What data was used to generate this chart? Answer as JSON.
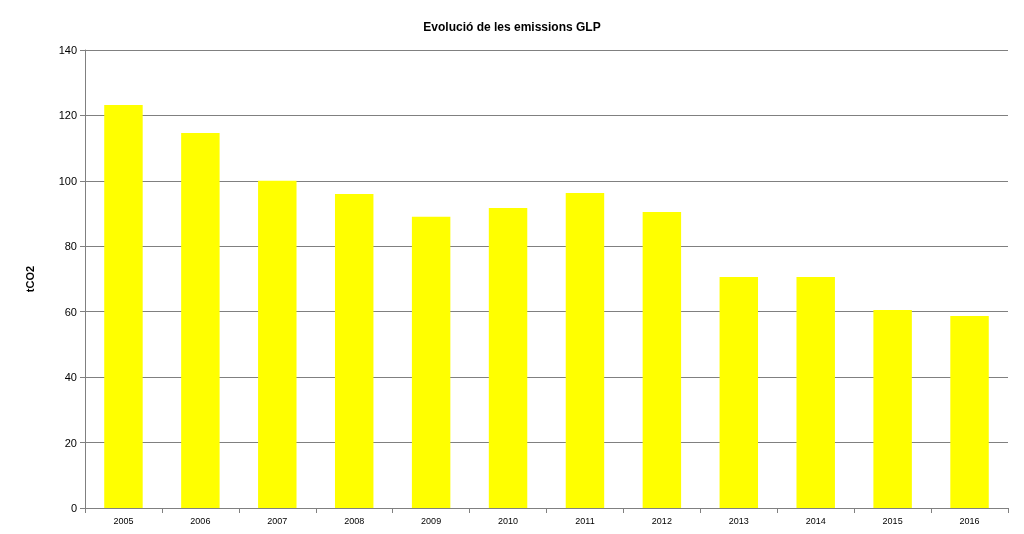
{
  "chart_data": {
    "type": "bar",
    "title": "Evolució de les emissions GLP",
    "ylabel": "tCO2",
    "categories": [
      "2005",
      "2006",
      "2007",
      "2008",
      "2009",
      "2010",
      "2011",
      "2012",
      "2013",
      "2014",
      "2015",
      "2016"
    ],
    "values": [
      123.2,
      114.6,
      100,
      96,
      89,
      91.7,
      96.3,
      90.5,
      70.6,
      70.6,
      60.5,
      58.7
    ],
    "color": "#ffff00",
    "ylim": [
      0,
      140
    ],
    "yticks": [
      0,
      20,
      40,
      60,
      80,
      100,
      120,
      140
    ],
    "grid": "y"
  }
}
